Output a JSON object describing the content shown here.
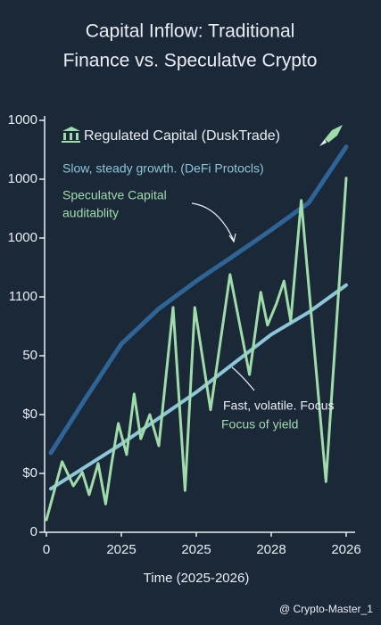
{
  "chart_data": {
    "type": "line",
    "title": [
      "Capital Inflow: Traditional",
      "Finance vs. Speculatve Crypto"
    ],
    "legend": "Regulated Capital (DuskTrade)",
    "annotations": [
      "Slow, steady growth. (DeFi Protocls)",
      "Speculatve Capital",
      "auditablity",
      "Fast, volatile. Focus",
      "Focus of yield"
    ],
    "xlabel": "Time (2025-2026)",
    "watermark": "@ Crypto-Master_1",
    "xlim": [
      0,
      4
    ],
    "xticks": [
      0,
      {
        "value": 1,
        "label": "2025"
      },
      {
        "value": 2,
        "label": "2025"
      },
      {
        "value": 3,
        "label": "2028"
      },
      {
        "value": 4,
        "label": "2026"
      }
    ],
    "ylim": [
      0,
      7
    ],
    "yticks": [
      0,
      {
        "value": 1,
        "label": "$0"
      },
      {
        "value": 2,
        "label": "$0"
      },
      {
        "value": 3,
        "label": "50"
      },
      {
        "value": 4,
        "label": "1100"
      },
      {
        "value": 5,
        "label": "1000"
      },
      {
        "value": 6,
        "label": "1000"
      },
      {
        "value": 7,
        "label": "1000"
      }
    ],
    "series": [
      {
        "name": "Regulated Capital (DuskTrade)",
        "color": "#2f6496",
        "width": 5,
        "x": [
          0.06,
          0.5,
          1,
          1.5,
          2,
          2.5,
          3,
          3.5,
          4
        ],
        "values": [
          1.35,
          2.23,
          3.2,
          3.8,
          4.27,
          4.7,
          5.14,
          5.6,
          6.55
        ]
      },
      {
        "color": "#8cc6d8",
        "width": 4,
        "x": [
          0.06,
          1,
          2,
          3,
          3.5,
          4
        ],
        "values": [
          0.74,
          1.5,
          2.38,
          3.36,
          3.74,
          4.2
        ]
      },
      {
        "color": "#9fdcaa",
        "width": 3,
        "x": [
          0,
          0.21,
          0.36,
          0.48,
          0.57,
          0.69,
          0.79,
          0.87,
          0.96,
          1.07,
          1.17,
          1.26,
          1.38,
          1.5,
          1.69,
          1.85,
          1.98,
          2.19,
          2.45,
          2.71,
          2.86,
          2.95,
          3.07,
          3.17,
          3.26,
          3.4,
          3.73,
          4.0
        ],
        "values": [
          0.21,
          1.2,
          0.79,
          1.02,
          0.64,
          1.17,
          0.48,
          1.17,
          1.85,
          1.32,
          2.35,
          1.59,
          2.0,
          1.47,
          3.82,
          0.71,
          3.82,
          2.08,
          4.38,
          2.68,
          4.08,
          3.52,
          3.89,
          4.27,
          3.59,
          5.64,
          0.86,
          6.02
        ]
      }
    ]
  }
}
